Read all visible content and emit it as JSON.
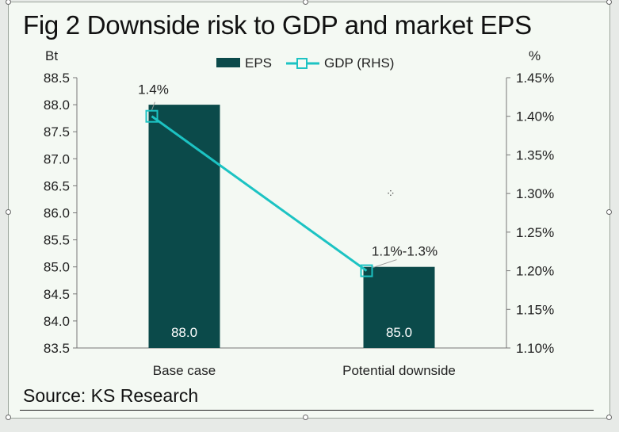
{
  "chart_data": {
    "type": "bar",
    "title": "Fig 2 Downside risk to GDP and market EPS",
    "source": "Source: KS Research",
    "categories": [
      "Base case",
      "Potential downside"
    ],
    "y_left": {
      "unit": "Bt",
      "ylim": [
        83.5,
        88.5
      ],
      "ticks": [
        "88.5",
        "88.0",
        "87.5",
        "87.0",
        "86.5",
        "86.0",
        "85.5",
        "85.0",
        "84.5",
        "84.0",
        "83.5"
      ],
      "tick_values": [
        88.5,
        88.0,
        87.5,
        87.0,
        86.5,
        86.0,
        85.5,
        85.0,
        84.5,
        84.0,
        83.5
      ]
    },
    "y_right": {
      "unit": "%",
      "ylim": [
        1.1,
        1.45
      ],
      "ticks": [
        "1.45%",
        "1.40%",
        "1.35%",
        "1.30%",
        "1.25%",
        "1.20%",
        "1.15%",
        "1.10%"
      ],
      "tick_values": [
        1.45,
        1.4,
        1.35,
        1.3,
        1.25,
        1.2,
        1.15,
        1.1
      ]
    },
    "series": [
      {
        "name": "EPS",
        "kind": "bar",
        "axis": "left",
        "values": [
          88.0,
          85.0
        ],
        "labels": [
          "88.0",
          "85.0"
        ],
        "color": "#0b4a4a"
      },
      {
        "name": "GDP (RHS)",
        "kind": "line",
        "axis": "right",
        "values": [
          1.4,
          1.2
        ],
        "labels": [
          "1.4%",
          "1.1%-1.3%"
        ],
        "color": "#1cc3c3"
      }
    ],
    "legend": "top-center",
    "grid": false
  }
}
